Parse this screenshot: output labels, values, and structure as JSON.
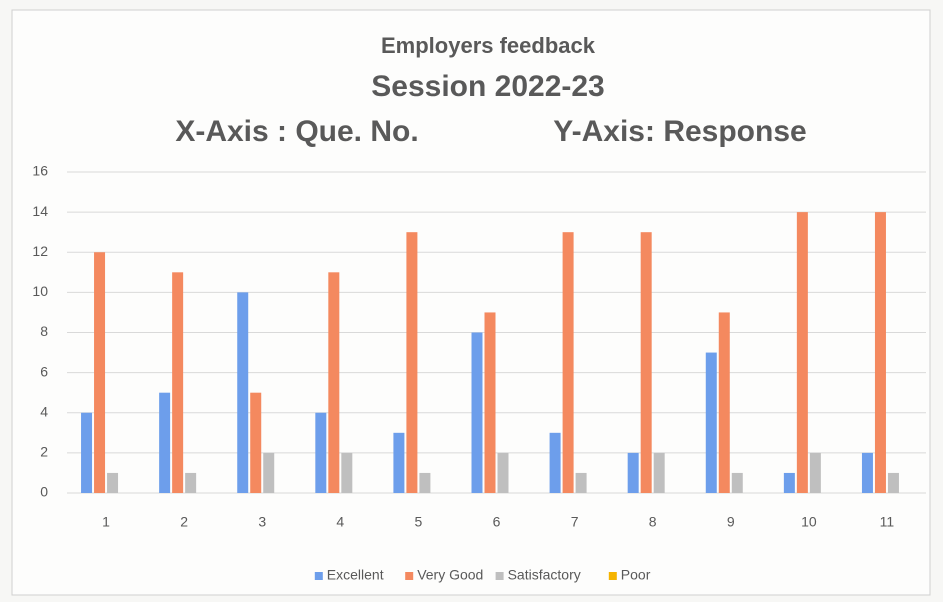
{
  "chart_data": {
    "type": "bar",
    "title": "Employers feedback",
    "subtitle": "Session 2022-23",
    "x_label": "X-Axis : Que. No.",
    "y_label": "Y-Axis: Response",
    "categories": [
      "1",
      "2",
      "3",
      "4",
      "5",
      "6",
      "7",
      "8",
      "9",
      "10",
      "11"
    ],
    "series": [
      {
        "name": "Excellent",
        "color": "#6d9eeb",
        "values": [
          4,
          5,
          10,
          4,
          3,
          8,
          3,
          2,
          7,
          1,
          2
        ]
      },
      {
        "name": "Very Good",
        "color": "#f4895f",
        "values": [
          12,
          11,
          5,
          11,
          13,
          9,
          13,
          13,
          9,
          14,
          14
        ]
      },
      {
        "name": "Satisfactory",
        "color": "#bfbfbf",
        "values": [
          1,
          1,
          2,
          2,
          1,
          2,
          1,
          2,
          1,
          2,
          1
        ]
      },
      {
        "name": "Poor",
        "color": "#f5b400",
        "values": [
          0,
          0,
          0,
          0,
          0,
          0,
          0,
          0,
          0,
          0,
          0
        ]
      }
    ],
    "ylim": [
      0,
      16
    ],
    "yticks": [
      0,
      2,
      4,
      6,
      8,
      10,
      12,
      14,
      16
    ],
    "grid": true,
    "legend": "bottom"
  }
}
